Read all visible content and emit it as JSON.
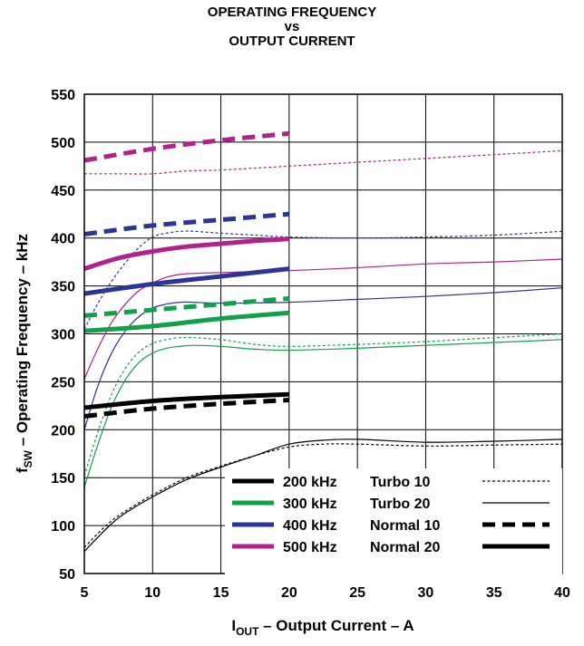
{
  "chart_data": {
    "type": "line",
    "title": [
      "OPERATING FREQUENCY",
      "vs",
      "OUTPUT CURRENT"
    ],
    "xlabel": {
      "main": "I",
      "sub": "OUT",
      "rest": " – Output Current – A"
    },
    "ylabel": {
      "main": "f",
      "sub": "SW",
      "rest": " – Operating Frequency – kHz"
    },
    "xlim": [
      5,
      40
    ],
    "ylim": [
      50,
      550
    ],
    "xticks": [
      5,
      10,
      15,
      20,
      25,
      30,
      35,
      40
    ],
    "yticks": [
      50,
      100,
      150,
      200,
      250,
      300,
      350,
      400,
      450,
      500,
      550
    ],
    "grid": true,
    "legend_placement": "bottom-right",
    "frequency_legend": [
      {
        "label": "200 kHz",
        "color": "#000000"
      },
      {
        "label": "300 kHz",
        "color": "#13a04a"
      },
      {
        "label": "400 kHz",
        "color": "#2b3595"
      },
      {
        "label": "500 kHz",
        "color": "#b1228c"
      }
    ],
    "mode_legend": [
      {
        "label": "Turbo 10",
        "style": "thin-dotted"
      },
      {
        "label": "Turbo 20",
        "style": "thin-solid"
      },
      {
        "label": "Normal 10",
        "style": "thick-dashed"
      },
      {
        "label": "Normal 20",
        "style": "thick-solid"
      }
    ],
    "series": [
      {
        "freq": "500 kHz",
        "mode": "Normal 10",
        "color": "#b1228c",
        "style": "thick-dashed",
        "x": [
          5,
          10,
          15,
          20
        ],
        "y": [
          481,
          493,
          502,
          509
        ]
      },
      {
        "freq": "500 kHz",
        "mode": "Turbo 10",
        "color": "#b1228c",
        "style": "thin-dotted",
        "x": [
          5,
          7.5,
          10,
          12.5,
          15,
          20,
          25,
          30,
          35,
          40
        ],
        "y": [
          467,
          467,
          467,
          470,
          471,
          475,
          479,
          483,
          487,
          491
        ]
      },
      {
        "freq": "500 kHz",
        "mode": "Normal 20",
        "color": "#b1228c",
        "style": "thick-solid",
        "x": [
          5,
          7.5,
          10,
          12.5,
          15,
          17.5,
          20
        ],
        "y": [
          368,
          379,
          386,
          391,
          394,
          397,
          399
        ]
      },
      {
        "freq": "500 kHz",
        "mode": "Turbo 20",
        "color": "#b1228c",
        "style": "thin-solid",
        "x": [
          5,
          6,
          7,
          8,
          9,
          10,
          11,
          12,
          13,
          15,
          20,
          25,
          30,
          35,
          40
        ],
        "y": [
          253,
          285,
          312,
          331,
          345,
          353,
          359,
          362,
          363,
          364,
          366,
          369,
          373,
          375,
          378
        ]
      },
      {
        "freq": "400 kHz",
        "mode": "Normal 10",
        "color": "#2b3595",
        "style": "thick-dashed",
        "x": [
          5,
          10,
          15,
          20
        ],
        "y": [
          404,
          413,
          419,
          425
        ]
      },
      {
        "freq": "400 kHz",
        "mode": "Turbo 10",
        "color": "#2b3595",
        "style": "thin-dotted",
        "x": [
          5,
          6,
          7,
          8,
          9,
          10,
          11,
          12,
          13,
          15,
          17.5,
          20,
          25,
          30,
          35,
          40
        ],
        "y": [
          305,
          332,
          355,
          374,
          390,
          401,
          405,
          407,
          407,
          405,
          403,
          401,
          400,
          401,
          403,
          407
        ]
      },
      {
        "freq": "400 kHz",
        "mode": "Normal 20",
        "color": "#2b3595",
        "style": "thick-solid",
        "x": [
          5,
          10,
          15,
          20
        ],
        "y": [
          342,
          352,
          360,
          368
        ]
      },
      {
        "freq": "400 kHz",
        "mode": "Turbo 20",
        "color": "#2b3595",
        "style": "thin-solid",
        "x": [
          5,
          6,
          7,
          8,
          9,
          10,
          11,
          12,
          13,
          15,
          20,
          25,
          30,
          35,
          40
        ],
        "y": [
          200,
          246,
          280,
          303,
          318,
          327,
          331,
          333,
          333,
          332,
          333,
          336,
          339,
          343,
          348
        ]
      },
      {
        "freq": "300 kHz",
        "mode": "Normal 10",
        "color": "#13a04a",
        "style": "thick-dashed",
        "x": [
          5,
          10,
          15,
          20
        ],
        "y": [
          319,
          325,
          331,
          337
        ]
      },
      {
        "freq": "300 kHz",
        "mode": "Normal 20",
        "color": "#13a04a",
        "style": "thick-solid",
        "x": [
          5,
          10,
          15,
          20
        ],
        "y": [
          303,
          308,
          316,
          322
        ]
      },
      {
        "freq": "300 kHz",
        "mode": "Turbo 10",
        "color": "#13a04a",
        "style": "thin-dotted",
        "x": [
          5,
          6,
          7,
          8,
          9,
          10,
          11,
          12,
          13,
          15,
          17.5,
          20,
          25,
          30,
          35,
          40
        ],
        "y": [
          152,
          198,
          237,
          264,
          281,
          290,
          294,
          296,
          296,
          294,
          289,
          287,
          289,
          292,
          296,
          300
        ]
      },
      {
        "freq": "300 kHz",
        "mode": "Turbo 20",
        "color": "#13a04a",
        "style": "thin-solid",
        "x": [
          5,
          6,
          7,
          8,
          9,
          10,
          11,
          12,
          13,
          15,
          17.5,
          20,
          25,
          30,
          35,
          40
        ],
        "y": [
          140,
          185,
          224,
          252,
          270,
          280,
          285,
          287,
          288,
          287,
          284,
          283,
          285,
          288,
          291,
          294
        ]
      },
      {
        "freq": "200 kHz",
        "mode": "Normal 20",
        "color": "#000000",
        "style": "thick-solid",
        "x": [
          5,
          10,
          15,
          20
        ],
        "y": [
          223,
          230,
          234,
          237
        ]
      },
      {
        "freq": "200 kHz",
        "mode": "Normal 10",
        "color": "#000000",
        "style": "thick-dashed",
        "x": [
          5,
          10,
          15,
          20
        ],
        "y": [
          214,
          222,
          227,
          231
        ]
      },
      {
        "freq": "200 kHz",
        "mode": "Turbo 10",
        "color": "#000000",
        "style": "thin-dotted",
        "x": [
          5,
          6,
          7,
          8,
          10,
          12.5,
          15,
          17.5,
          20,
          22.5,
          25,
          30,
          35,
          40
        ],
        "y": [
          77,
          92,
          105,
          115,
          132,
          150,
          162,
          173,
          182,
          185,
          185,
          183,
          184,
          185
        ]
      },
      {
        "freq": "200 kHz",
        "mode": "Turbo 20",
        "color": "#000000",
        "style": "thin-solid",
        "x": [
          5,
          6,
          7,
          8,
          10,
          12.5,
          15,
          17.5,
          20,
          22.5,
          25,
          30,
          35,
          40
        ],
        "y": [
          73,
          88,
          102,
          113,
          130,
          148,
          161,
          173,
          185,
          189,
          190,
          187,
          188,
          190
        ]
      }
    ]
  }
}
